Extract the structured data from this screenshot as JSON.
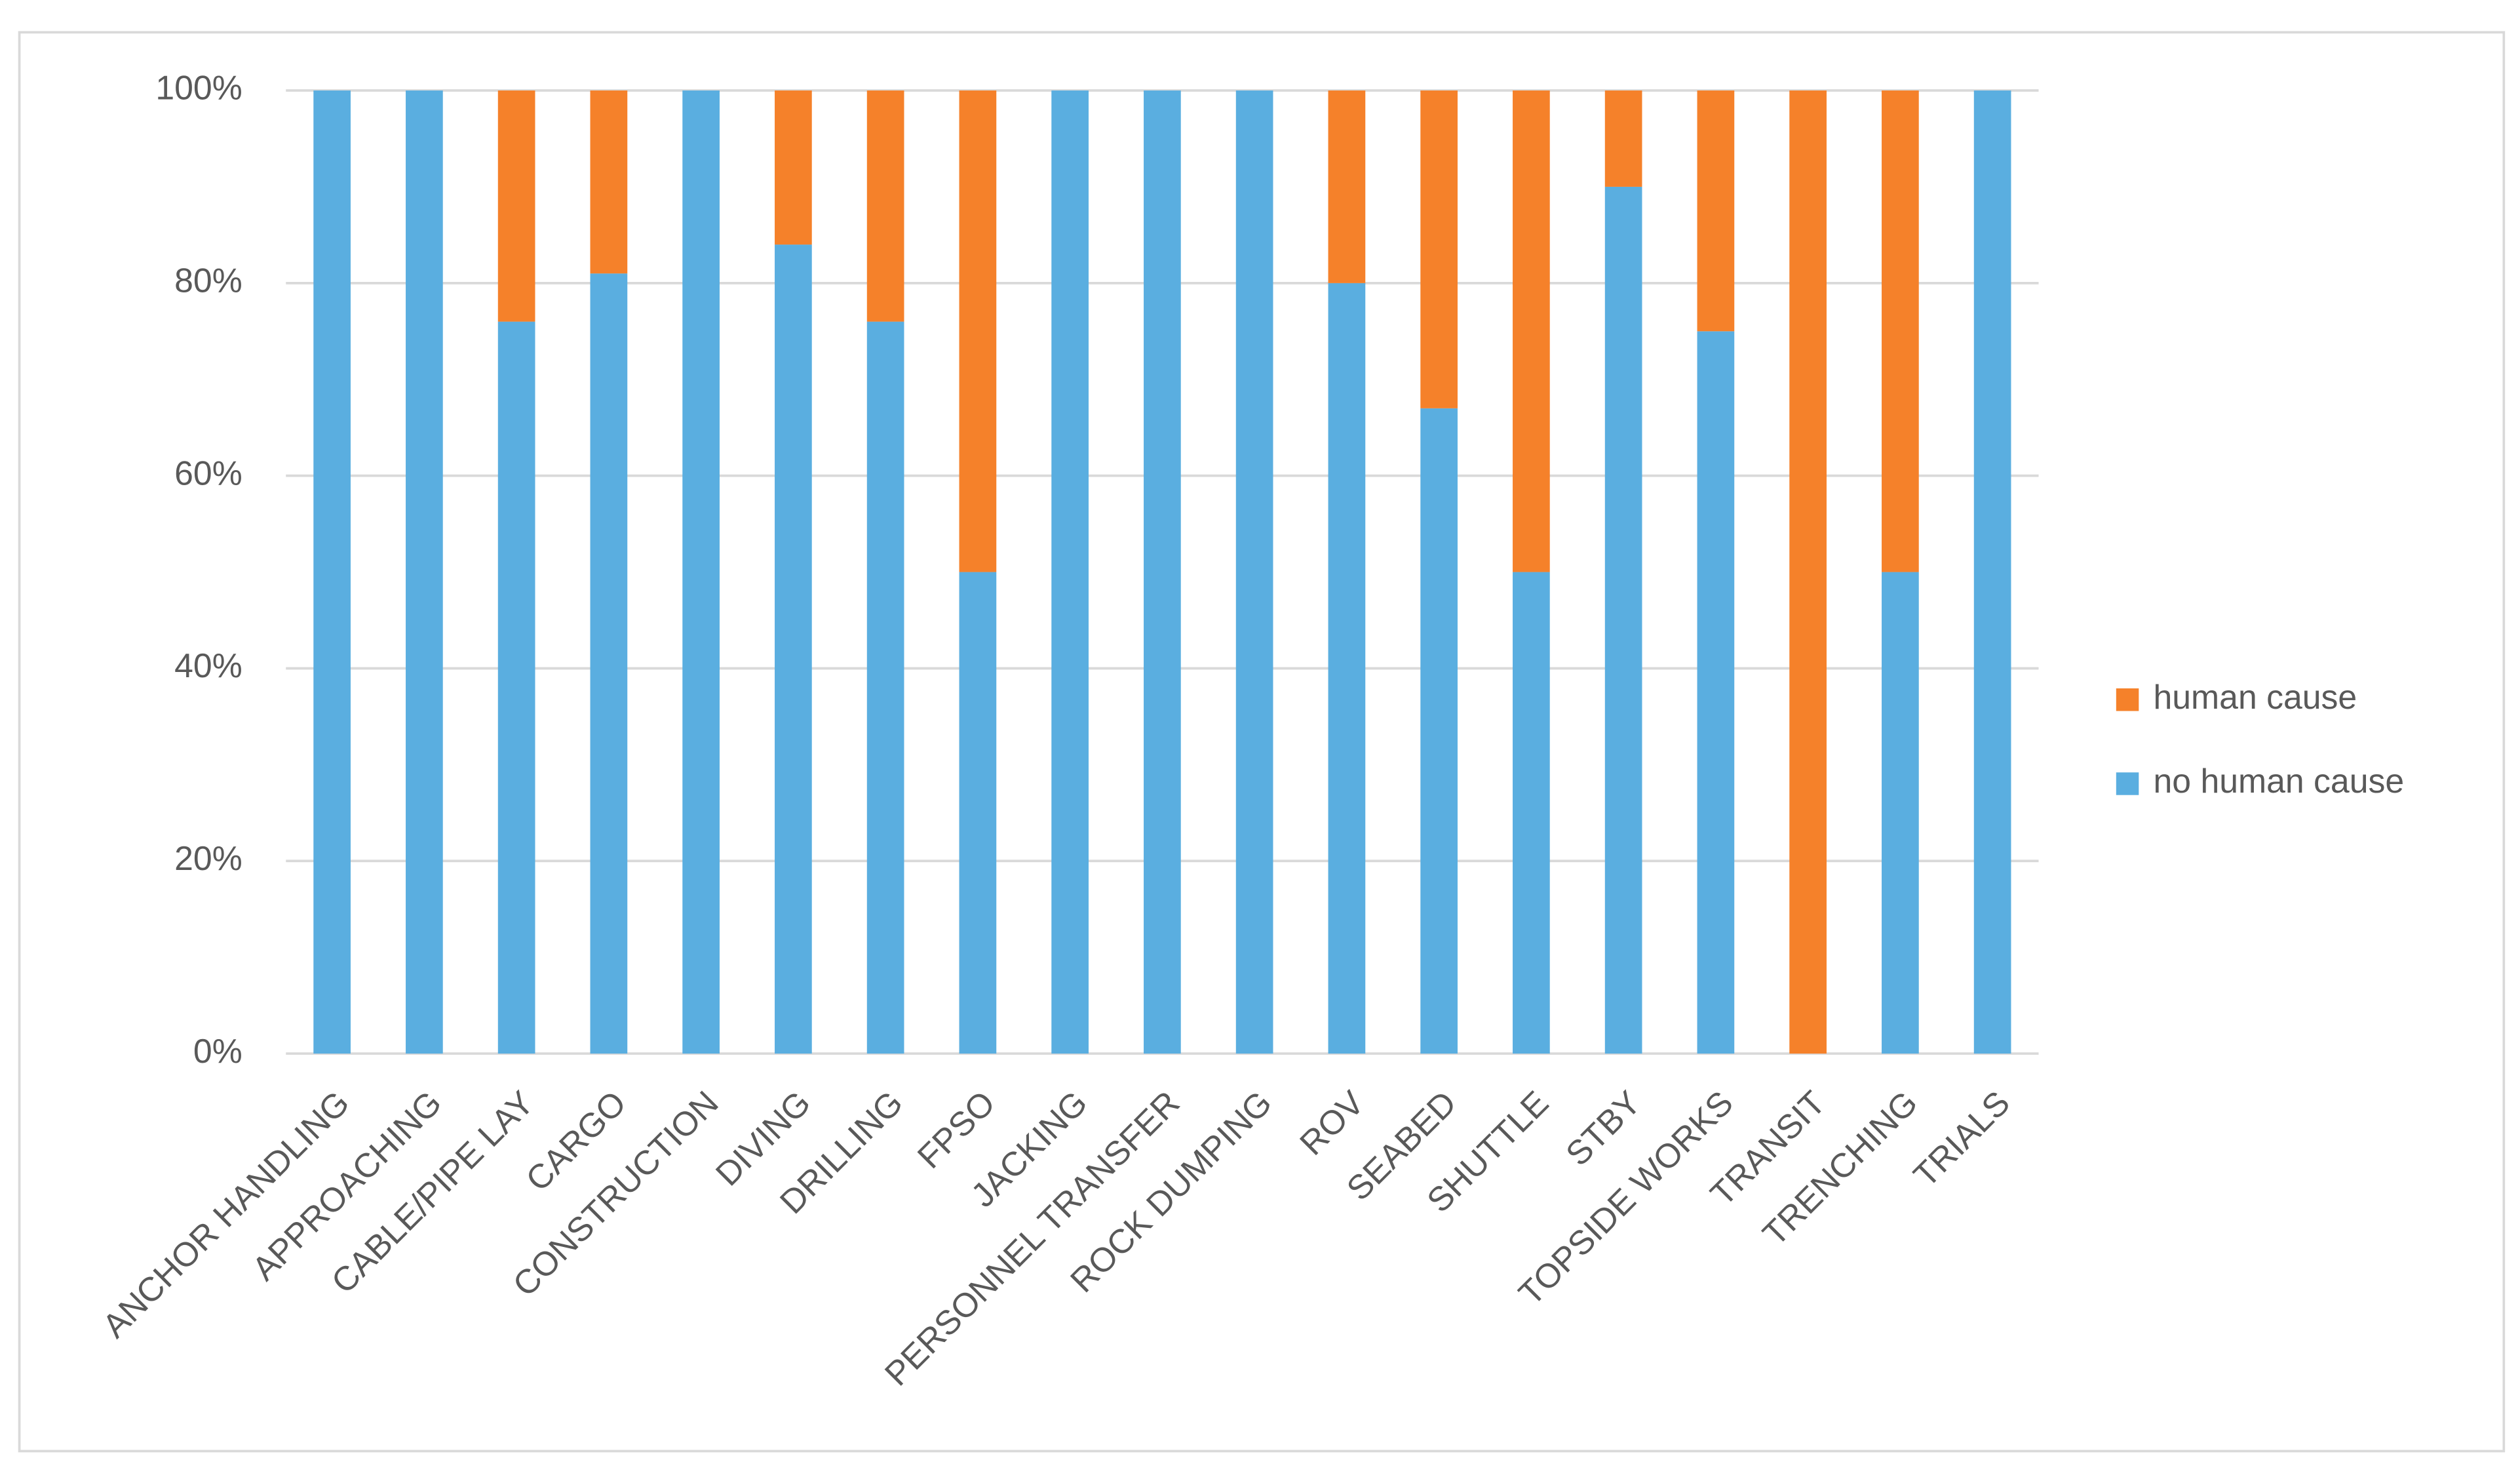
{
  "chart_data": {
    "type": "stacked_bar",
    "categories": [
      "ANCHOR HANDLING",
      "APPROACHING",
      "CABLE/PIPE LAY",
      "CARGO",
      "CONSTRUCTION",
      "DIVING",
      "DRILLING",
      "FPSO",
      "JACKING",
      "PERSONNEL TRANSFER",
      "ROCK DUMPING",
      "ROV",
      "SEABED",
      "SHUTTLE",
      "STBY",
      "TOPSIDE WORKS",
      "TRANSIT",
      "TRENCHING",
      "TRIALS"
    ],
    "series": [
      {
        "name": "no human cause",
        "color": "#5aaee0",
        "values": [
          100,
          100,
          76,
          81,
          100,
          84,
          76,
          50,
          100,
          100,
          100,
          80,
          67,
          50,
          90,
          75,
          0,
          50,
          100
        ]
      },
      {
        "name": "human cause",
        "color": "#f5812a",
        "values": [
          0,
          0,
          24,
          19,
          0,
          16,
          24,
          50,
          0,
          0,
          0,
          20,
          33,
          50,
          10,
          25,
          100,
          50,
          0
        ]
      }
    ],
    "ylim": [
      0,
      100
    ],
    "yticks": [
      {
        "value": 0,
        "label": "0%"
      },
      {
        "value": 20,
        "label": "20%"
      },
      {
        "value": 40,
        "label": "40%"
      },
      {
        "value": 60,
        "label": "60%"
      },
      {
        "value": 80,
        "label": "80%"
      },
      {
        "value": 100,
        "label": "100%"
      }
    ],
    "grid": true,
    "legend": "right"
  }
}
